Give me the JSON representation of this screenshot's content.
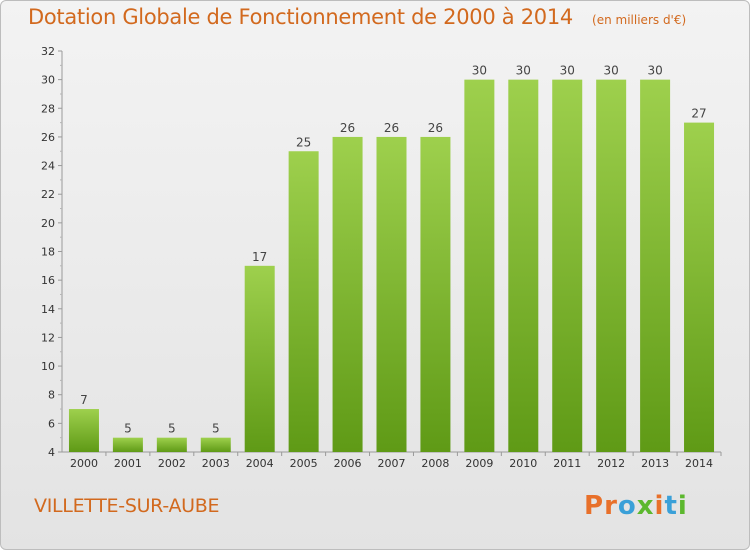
{
  "header": {
    "title": "Dotation Globale de Fonctionnement de 2000 à 2014",
    "subtitle": "(en milliers d'€)"
  },
  "footer": {
    "commune": "VILLETTE-SUR-AUBE",
    "logo_text": "Proxiti"
  },
  "colors": {
    "title": "#d2691e",
    "bar_light": "#9ed04d",
    "bar_dark": "#5f9a16",
    "logo_letters": [
      "#e8702a",
      "#e8702a",
      "#3aa0d8",
      "#5cb82e",
      "#e8702a",
      "#3aa0d8",
      "#5cb82e"
    ]
  },
  "chart_data": {
    "type": "bar",
    "title": "Dotation Globale de Fonctionnement de 2000 à 2014",
    "subtitle": "(en milliers d'€)",
    "xlabel": "",
    "ylabel": "",
    "categories": [
      "2000",
      "2001",
      "2002",
      "2003",
      "2004",
      "2005",
      "2006",
      "2007",
      "2008",
      "2009",
      "2010",
      "2011",
      "2012",
      "2013",
      "2014"
    ],
    "values": [
      7,
      5,
      5,
      5,
      17,
      25,
      26,
      26,
      26,
      30,
      30,
      30,
      30,
      30,
      27
    ],
    "ylim": [
      4,
      32
    ],
    "yticks": [
      4,
      6,
      8,
      10,
      12,
      14,
      16,
      18,
      20,
      22,
      24,
      26,
      28,
      30,
      32
    ],
    "grid": false,
    "data_labels": true
  }
}
